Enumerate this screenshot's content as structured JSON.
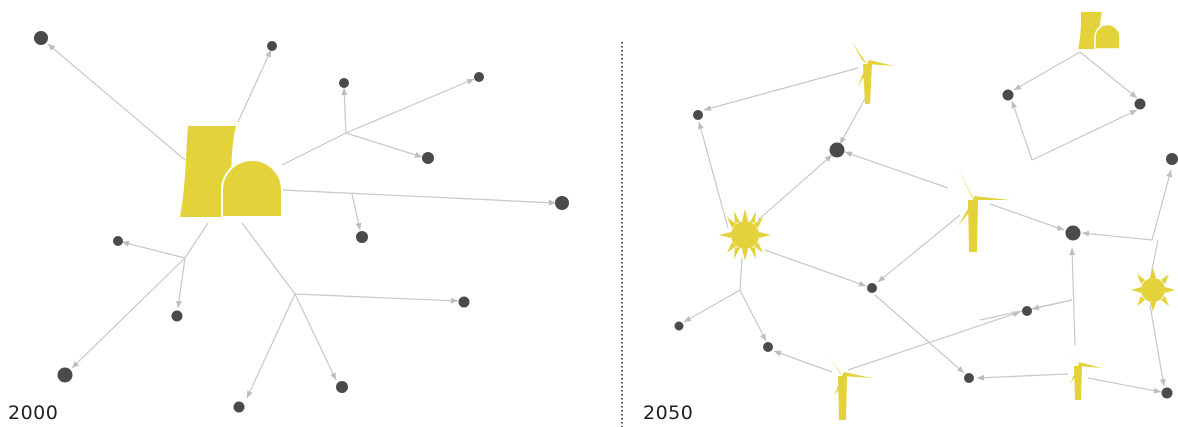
{
  "colors": {
    "accent": "#e3d23a",
    "node": "#4a4a4a",
    "edge": "#c8c8c8",
    "divider": "#555555"
  },
  "panels": [
    {
      "id": "left",
      "year_label": "2000",
      "description_icons": [
        "power-plant-icon"
      ]
    },
    {
      "id": "right",
      "year_label": "2050",
      "description_icons": [
        "wind-turbine-icon",
        "sun-icon",
        "power-plant-icon"
      ]
    }
  ]
}
